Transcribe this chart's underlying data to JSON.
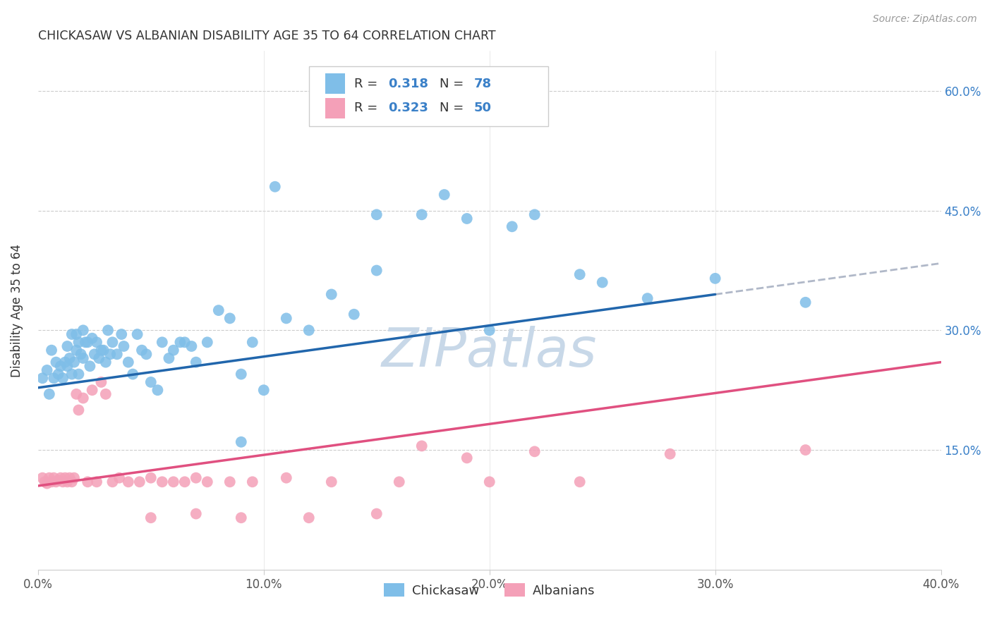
{
  "title": "CHICKASAW VS ALBANIAN DISABILITY AGE 35 TO 64 CORRELATION CHART",
  "source": "Source: ZipAtlas.com",
  "ylabel": "Disability Age 35 to 64",
  "xlim": [
    0.0,
    0.4
  ],
  "ylim": [
    0.0,
    0.65
  ],
  "xticks": [
    0.0,
    0.1,
    0.2,
    0.3,
    0.4
  ],
  "ytick_vals": [
    0.15,
    0.3,
    0.45,
    0.6
  ],
  "ytick_labels_right": [
    "15.0%",
    "30.0%",
    "45.0%",
    "60.0%"
  ],
  "xtick_labels": [
    "0.0%",
    "10.0%",
    "20.0%",
    "30.0%",
    "40.0%"
  ],
  "chickasaw_color": "#7fbee8",
  "albanian_color": "#f4a0b8",
  "line_chickasaw_color": "#2166ac",
  "line_albanian_color": "#e05080",
  "dashed_line_color": "#b0b8c8",
  "R_chickasaw": 0.318,
  "N_chickasaw": 78,
  "R_albanian": 0.323,
  "N_albanian": 50,
  "background_color": "#ffffff",
  "grid_color": "#cccccc",
  "watermark_text": "ZIPatlas",
  "watermark_color": "#c8d8e8",
  "legend_labels": [
    "Chickasaw",
    "Albanians"
  ],
  "line_chick_x0": 0.0,
  "line_chick_y0": 0.228,
  "line_chick_x1": 0.3,
  "line_chick_y1": 0.345,
  "line_alb_x0": 0.0,
  "line_alb_y0": 0.105,
  "line_alb_x1": 0.4,
  "line_alb_y1": 0.26,
  "chickasaw_x": [
    0.2,
    0.4,
    0.5,
    0.6,
    0.7,
    0.8,
    0.9,
    1.0,
    1.1,
    1.2,
    1.3,
    1.3,
    1.4,
    1.5,
    1.5,
    1.6,
    1.7,
    1.7,
    1.8,
    1.8,
    1.9,
    2.0,
    2.0,
    2.1,
    2.2,
    2.3,
    2.4,
    2.5,
    2.6,
    2.7,
    2.8,
    2.9,
    3.0,
    3.1,
    3.2,
    3.3,
    3.5,
    3.7,
    3.8,
    4.0,
    4.2,
    4.4,
    4.6,
    4.8,
    5.0,
    5.3,
    5.5,
    5.8,
    6.0,
    6.3,
    6.5,
    6.8,
    7.0,
    7.5,
    8.0,
    8.5,
    9.0,
    9.5,
    10.0,
    11.0,
    12.0,
    13.0,
    15.0,
    17.0,
    19.0,
    21.0,
    24.0,
    27.0,
    30.0,
    34.0,
    10.5,
    15.0,
    18.0,
    22.0,
    25.0,
    20.0,
    14.0,
    9.0
  ],
  "chickasaw_y": [
    24.0,
    25.0,
    22.0,
    27.5,
    24.0,
    26.0,
    24.5,
    25.5,
    24.0,
    26.0,
    28.0,
    25.5,
    26.5,
    24.5,
    29.5,
    26.0,
    27.5,
    29.5,
    28.5,
    24.5,
    27.0,
    30.0,
    26.5,
    28.5,
    28.5,
    25.5,
    29.0,
    27.0,
    28.5,
    26.5,
    27.5,
    27.5,
    26.0,
    30.0,
    27.0,
    28.5,
    27.0,
    29.5,
    28.0,
    26.0,
    24.5,
    29.5,
    27.5,
    27.0,
    23.5,
    22.5,
    28.5,
    26.5,
    27.5,
    28.5,
    28.5,
    28.0,
    26.0,
    28.5,
    32.5,
    31.5,
    24.5,
    28.5,
    22.5,
    31.5,
    30.0,
    34.5,
    37.5,
    44.5,
    44.0,
    43.0,
    37.0,
    34.0,
    36.5,
    33.5,
    48.0,
    44.5,
    47.0,
    44.5,
    36.0,
    30.0,
    32.0,
    16.0
  ],
  "albanian_x": [
    0.2,
    0.3,
    0.4,
    0.5,
    0.6,
    0.7,
    0.8,
    0.9,
    1.0,
    1.1,
    1.2,
    1.3,
    1.4,
    1.5,
    1.6,
    1.7,
    1.8,
    2.0,
    2.2,
    2.4,
    2.6,
    2.8,
    3.0,
    3.3,
    3.6,
    4.0,
    4.5,
    5.0,
    5.5,
    6.0,
    6.5,
    7.0,
    7.5,
    8.5,
    9.5,
    11.0,
    13.0,
    16.0,
    20.0,
    24.0,
    5.0,
    7.0,
    9.0,
    12.0,
    15.0,
    17.0,
    19.0,
    22.0,
    28.0,
    34.0
  ],
  "albanian_y": [
    11.5,
    11.0,
    10.8,
    11.5,
    11.0,
    11.5,
    11.0,
    11.2,
    11.5,
    11.0,
    11.5,
    11.0,
    11.5,
    11.0,
    11.5,
    22.0,
    20.0,
    21.5,
    11.0,
    22.5,
    11.0,
    23.5,
    22.0,
    11.0,
    11.5,
    11.0,
    11.0,
    11.5,
    11.0,
    11.0,
    11.0,
    11.5,
    11.0,
    11.0,
    11.0,
    11.5,
    11.0,
    11.0,
    11.0,
    11.0,
    6.5,
    7.0,
    6.5,
    6.5,
    7.0,
    15.5,
    14.0,
    14.8,
    14.5,
    15.0
  ]
}
